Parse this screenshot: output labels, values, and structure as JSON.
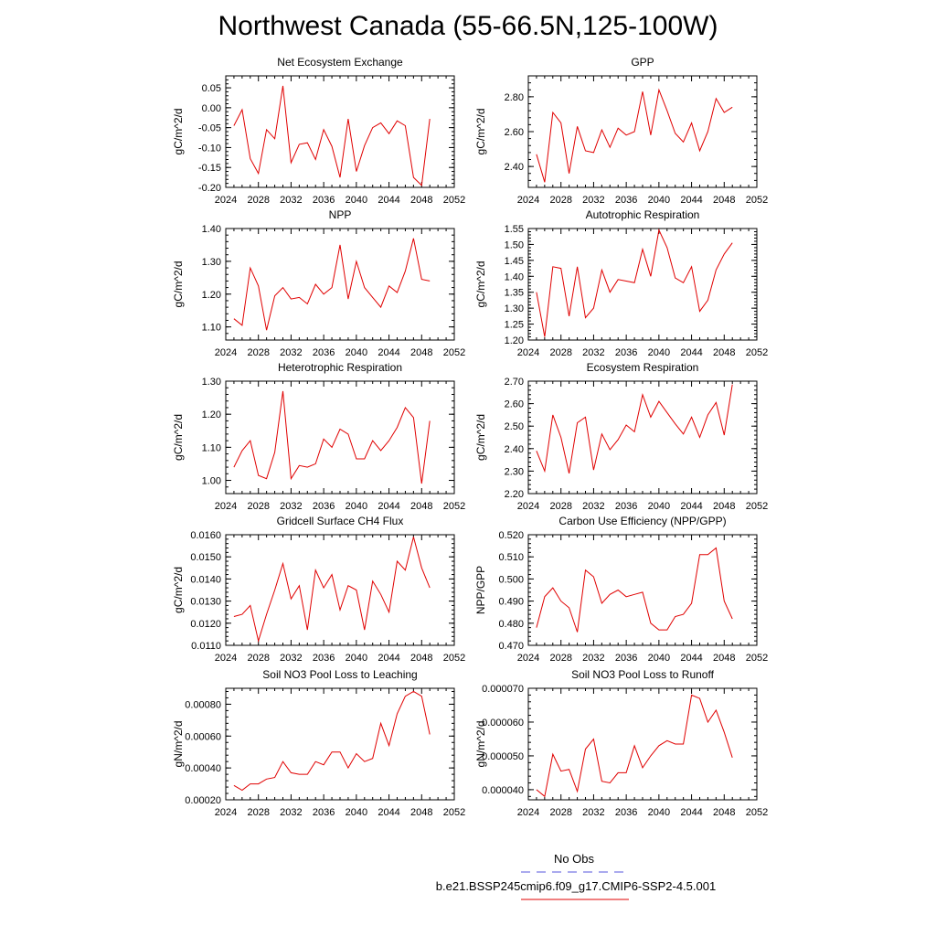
{
  "title": "Northwest Canada (55-66.5N,125-100W)",
  "legend": {
    "obs_label": "No Obs",
    "obs_color": "#5555dd",
    "model_label": "b.e21.BSSP245cmip6.f09_g17.CMIP6-SSP2-4.5.001",
    "model_color": "#e00000"
  },
  "chart_data": [
    {
      "type": "line",
      "title": "Net Ecosystem Exchange",
      "ylabel": "gC/m^2/d",
      "xlim": [
        2024,
        2052
      ],
      "ylim": [
        -0.2,
        0.08
      ],
      "xticks": [
        "2024",
        "2028",
        "2032",
        "2036",
        "2040",
        "2044",
        "2048",
        "2052"
      ],
      "yticks": [
        "0.05",
        "0.00",
        "-0.05",
        "-0.10",
        "-0.15",
        "-0.20"
      ],
      "yticks_values": [
        0.05,
        0.0,
        -0.05,
        -0.1,
        -0.15,
        -0.2
      ],
      "x": [
        2025,
        2026,
        2027,
        2028,
        2029,
        2030,
        2031,
        2032,
        2033,
        2034,
        2035,
        2036,
        2037,
        2038,
        2039,
        2040,
        2041,
        2042,
        2043,
        2044,
        2045,
        2046,
        2047,
        2048,
        2049
      ],
      "values": [
        -0.045,
        -0.005,
        -0.128,
        -0.165,
        -0.055,
        -0.078,
        0.055,
        -0.138,
        -0.092,
        -0.088,
        -0.13,
        -0.055,
        -0.097,
        -0.175,
        -0.028,
        -0.16,
        -0.095,
        -0.05,
        -0.038,
        -0.065,
        -0.033,
        -0.045,
        -0.175,
        -0.195,
        -0.028
      ]
    },
    {
      "type": "line",
      "title": "GPP",
      "ylabel": "gC/m^2/d",
      "xlim": [
        2024,
        2052
      ],
      "ylim": [
        2.28,
        2.92
      ],
      "xticks": [
        "2024",
        "2028",
        "2032",
        "2036",
        "2040",
        "2044",
        "2048",
        "2052"
      ],
      "yticks": [
        "2.80",
        "2.60",
        "2.40"
      ],
      "yticks_values": [
        2.8,
        2.6,
        2.4
      ],
      "x": [
        2025,
        2026,
        2027,
        2028,
        2029,
        2030,
        2031,
        2032,
        2033,
        2034,
        2035,
        2036,
        2037,
        2038,
        2039,
        2040,
        2041,
        2042,
        2043,
        2044,
        2045,
        2046,
        2047,
        2048,
        2049
      ],
      "values": [
        2.47,
        2.31,
        2.71,
        2.65,
        2.36,
        2.63,
        2.49,
        2.48,
        2.61,
        2.51,
        2.62,
        2.58,
        2.6,
        2.83,
        2.58,
        2.84,
        2.72,
        2.59,
        2.54,
        2.65,
        2.49,
        2.6,
        2.79,
        2.71,
        2.74
      ]
    },
    {
      "type": "line",
      "title": "NPP",
      "ylabel": "gC/m^2/d",
      "xlim": [
        2024,
        2052
      ],
      "ylim": [
        1.06,
        1.4
      ],
      "xticks": [
        "2024",
        "2028",
        "2032",
        "2036",
        "2040",
        "2044",
        "2048",
        "2052"
      ],
      "yticks": [
        "1.40",
        "1.30",
        "1.20",
        "1.10"
      ],
      "yticks_values": [
        1.4,
        1.3,
        1.2,
        1.1
      ],
      "x": [
        2025,
        2026,
        2027,
        2028,
        2029,
        2030,
        2031,
        2032,
        2033,
        2034,
        2035,
        2036,
        2037,
        2038,
        2039,
        2040,
        2041,
        2042,
        2043,
        2044,
        2045,
        2046,
        2047,
        2048,
        2049
      ],
      "values": [
        1.125,
        1.105,
        1.28,
        1.225,
        1.09,
        1.195,
        1.22,
        1.185,
        1.19,
        1.17,
        1.23,
        1.2,
        1.22,
        1.35,
        1.185,
        1.3,
        1.22,
        1.19,
        1.16,
        1.225,
        1.205,
        1.27,
        1.37,
        1.245,
        1.24
      ]
    },
    {
      "type": "line",
      "title": "Autotrophic Respiration",
      "ylabel": "gC/m^2/d",
      "xlim": [
        2024,
        2052
      ],
      "ylim": [
        1.2,
        1.55
      ],
      "xticks": [
        "2024",
        "2028",
        "2032",
        "2036",
        "2040",
        "2044",
        "2048",
        "2052"
      ],
      "yticks": [
        "1.55",
        "1.50",
        "1.45",
        "1.40",
        "1.35",
        "1.30",
        "1.25",
        "1.20"
      ],
      "yticks_values": [
        1.55,
        1.5,
        1.45,
        1.4,
        1.35,
        1.3,
        1.25,
        1.2
      ],
      "x": [
        2025,
        2026,
        2027,
        2028,
        2029,
        2030,
        2031,
        2032,
        2033,
        2034,
        2035,
        2036,
        2037,
        2038,
        2039,
        2040,
        2041,
        2042,
        2043,
        2044,
        2045,
        2046,
        2047,
        2048,
        2049
      ],
      "values": [
        1.35,
        1.21,
        1.43,
        1.425,
        1.275,
        1.43,
        1.27,
        1.3,
        1.42,
        1.35,
        1.39,
        1.385,
        1.38,
        1.485,
        1.4,
        1.545,
        1.49,
        1.395,
        1.38,
        1.43,
        1.29,
        1.325,
        1.42,
        1.47,
        1.505
      ]
    },
    {
      "type": "line",
      "title": "Heterotrophic Respiration",
      "ylabel": "gC/m^2/d",
      "xlim": [
        2024,
        2052
      ],
      "ylim": [
        0.96,
        1.3
      ],
      "xticks": [
        "2024",
        "2028",
        "2032",
        "2036",
        "2040",
        "2044",
        "2048",
        "2052"
      ],
      "yticks": [
        "1.30",
        "1.20",
        "1.10",
        "1.00"
      ],
      "yticks_values": [
        1.3,
        1.2,
        1.1,
        1.0
      ],
      "x": [
        2025,
        2026,
        2027,
        2028,
        2029,
        2030,
        2031,
        2032,
        2033,
        2034,
        2035,
        2036,
        2037,
        2038,
        2039,
        2040,
        2041,
        2042,
        2043,
        2044,
        2045,
        2046,
        2047,
        2048,
        2049
      ],
      "values": [
        1.04,
        1.09,
        1.12,
        1.015,
        1.005,
        1.085,
        1.27,
        1.005,
        1.045,
        1.04,
        1.05,
        1.125,
        1.1,
        1.155,
        1.14,
        1.065,
        1.065,
        1.12,
        1.09,
        1.12,
        1.16,
        1.22,
        1.19,
        0.99,
        1.18
      ]
    },
    {
      "type": "line",
      "title": "Ecosystem Respiration",
      "ylabel": "gC/m^2/d",
      "xlim": [
        2024,
        2052
      ],
      "ylim": [
        2.2,
        2.7
      ],
      "xticks": [
        "2024",
        "2028",
        "2032",
        "2036",
        "2040",
        "2044",
        "2048",
        "2052"
      ],
      "yticks": [
        "2.70",
        "2.60",
        "2.50",
        "2.40",
        "2.30",
        "2.20"
      ],
      "yticks_values": [
        2.7,
        2.6,
        2.5,
        2.4,
        2.3,
        2.2
      ],
      "x": [
        2025,
        2026,
        2027,
        2028,
        2029,
        2030,
        2031,
        2032,
        2033,
        2034,
        2035,
        2036,
        2037,
        2038,
        2039,
        2040,
        2041,
        2042,
        2043,
        2044,
        2045,
        2046,
        2047,
        2048,
        2049
      ],
      "values": [
        2.39,
        2.3,
        2.55,
        2.45,
        2.29,
        2.515,
        2.54,
        2.305,
        2.465,
        2.395,
        2.44,
        2.505,
        2.475,
        2.64,
        2.54,
        2.61,
        2.56,
        2.51,
        2.465,
        2.54,
        2.45,
        2.55,
        2.605,
        2.46,
        2.685
      ]
    },
    {
      "type": "line",
      "title": "Gridcell Surface CH4 Flux",
      "ylabel": "gC/m^2/d",
      "xlim": [
        2024,
        2052
      ],
      "ylim": [
        0.011,
        0.016
      ],
      "xticks": [
        "2024",
        "2028",
        "2032",
        "2036",
        "2040",
        "2044",
        "2048",
        "2052"
      ],
      "yticks": [
        "0.0160",
        "0.0150",
        "0.0140",
        "0.0130",
        "0.0120",
        "0.0110"
      ],
      "yticks_values": [
        0.016,
        0.015,
        0.014,
        0.013,
        0.012,
        0.011
      ],
      "x": [
        2025,
        2026,
        2027,
        2028,
        2029,
        2030,
        2031,
        2032,
        2033,
        2034,
        2035,
        2036,
        2037,
        2038,
        2039,
        2040,
        2041,
        2042,
        2043,
        2044,
        2045,
        2046,
        2047,
        2048,
        2049
      ],
      "values": [
        0.0123,
        0.0124,
        0.0128,
        0.0112,
        0.0124,
        0.0135,
        0.0147,
        0.0131,
        0.0137,
        0.0117,
        0.0144,
        0.0136,
        0.0142,
        0.0126,
        0.0137,
        0.0135,
        0.0117,
        0.0139,
        0.0133,
        0.0125,
        0.0148,
        0.0144,
        0.0159,
        0.0145,
        0.0136
      ]
    },
    {
      "type": "line",
      "title": "Carbon Use Efficiency (NPP/GPP)",
      "ylabel": "NPP/GPP",
      "xlim": [
        2024,
        2052
      ],
      "ylim": [
        0.47,
        0.52
      ],
      "xticks": [
        "2024",
        "2028",
        "2032",
        "2036",
        "2040",
        "2044",
        "2048",
        "2052"
      ],
      "yticks": [
        "0.520",
        "0.510",
        "0.500",
        "0.490",
        "0.480",
        "0.470"
      ],
      "yticks_values": [
        0.52,
        0.51,
        0.5,
        0.49,
        0.48,
        0.47
      ],
      "x": [
        2025,
        2026,
        2027,
        2028,
        2029,
        2030,
        2031,
        2032,
        2033,
        2034,
        2035,
        2036,
        2037,
        2038,
        2039,
        2040,
        2041,
        2042,
        2043,
        2044,
        2045,
        2046,
        2047,
        2048,
        2049
      ],
      "values": [
        0.478,
        0.492,
        0.496,
        0.49,
        0.487,
        0.476,
        0.504,
        0.501,
        0.489,
        0.493,
        0.495,
        0.492,
        0.493,
        0.494,
        0.48,
        0.477,
        0.477,
        0.483,
        0.484,
        0.489,
        0.511,
        0.511,
        0.514,
        0.49,
        0.482
      ]
    },
    {
      "type": "line",
      "title": "Soil NO3 Pool Loss to Leaching",
      "ylabel": "gN/m^2/d",
      "xlim": [
        2024,
        2052
      ],
      "ylim": [
        0.0002,
        0.0009
      ],
      "xticks": [
        "2024",
        "2028",
        "2032",
        "2036",
        "2040",
        "2044",
        "2048",
        "2052"
      ],
      "yticks": [
        "0.00080",
        "0.00060",
        "0.00040",
        "0.00020"
      ],
      "yticks_values": [
        0.0008,
        0.0006,
        0.0004,
        0.0002
      ],
      "x": [
        2025,
        2026,
        2027,
        2028,
        2029,
        2030,
        2031,
        2032,
        2033,
        2034,
        2035,
        2036,
        2037,
        2038,
        2039,
        2040,
        2041,
        2042,
        2043,
        2044,
        2045,
        2046,
        2047,
        2048,
        2049
      ],
      "values": [
        0.00029,
        0.00026,
        0.0003,
        0.0003,
        0.00033,
        0.00034,
        0.00044,
        0.00037,
        0.00036,
        0.00036,
        0.00044,
        0.00042,
        0.0005,
        0.0005,
        0.0004,
        0.00049,
        0.00044,
        0.00046,
        0.00068,
        0.00054,
        0.00074,
        0.00085,
        0.00088,
        0.00085,
        0.00061
      ]
    },
    {
      "type": "line",
      "title": "Soil NO3 Pool Loss to Runoff",
      "ylabel": "gN/m^2/d",
      "xlim": [
        2024,
        2052
      ],
      "ylim": [
        3.7e-05,
        7e-05
      ],
      "xticks": [
        "2024",
        "2028",
        "2032",
        "2036",
        "2040",
        "2044",
        "2048",
        "2052"
      ],
      "yticks": [
        "0.000070",
        "0.000060",
        "0.000050",
        "0.000040"
      ],
      "yticks_values": [
        7e-05,
        6e-05,
        5e-05,
        4e-05
      ],
      "x": [
        2025,
        2026,
        2027,
        2028,
        2029,
        2030,
        2031,
        2032,
        2033,
        2034,
        2035,
        2036,
        2037,
        2038,
        2039,
        2040,
        2041,
        2042,
        2043,
        2044,
        2045,
        2046,
        2047,
        2048,
        2049
      ],
      "values": [
        4e-05,
        3.8e-05,
        5.05e-05,
        4.55e-05,
        4.6e-05,
        3.95e-05,
        5.2e-05,
        5.5e-05,
        4.25e-05,
        4.2e-05,
        4.5e-05,
        4.5e-05,
        5.3e-05,
        4.65e-05,
        5e-05,
        5.3e-05,
        5.45e-05,
        5.35e-05,
        5.35e-05,
        6.8e-05,
        6.7e-05,
        6e-05,
        6.35e-05,
        5.7e-05,
        4.95e-05
      ]
    }
  ]
}
